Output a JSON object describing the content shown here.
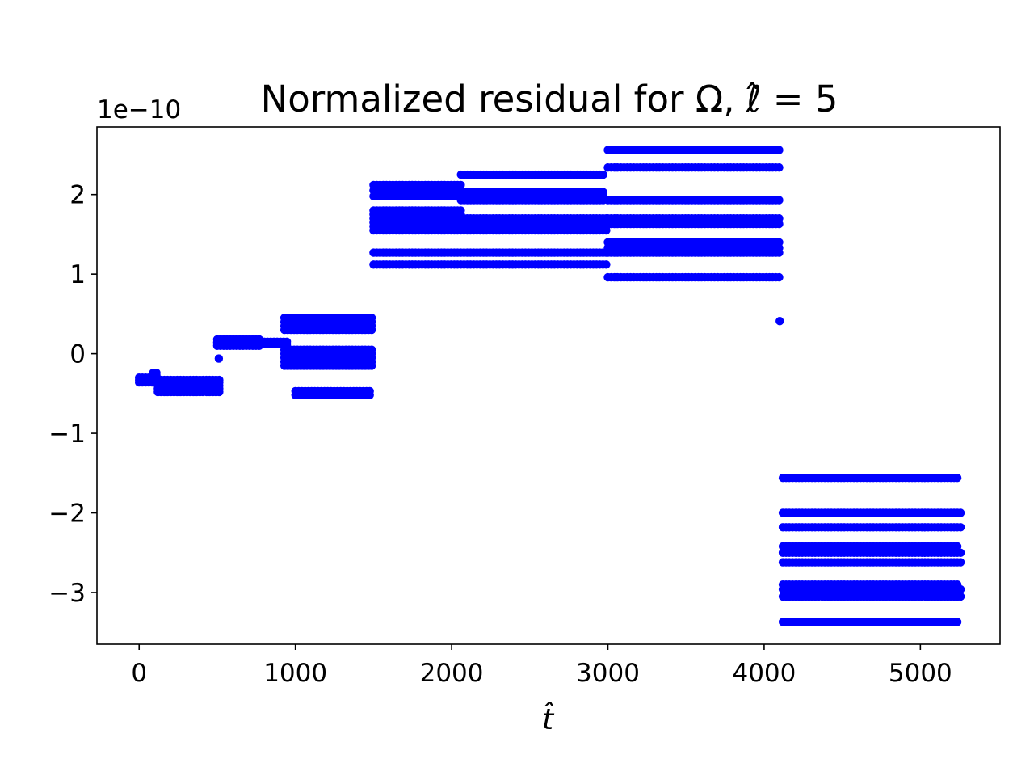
{
  "chart_data": {
    "type": "scatter",
    "title": "Normalized residual for Ω, ℓ̂ = 5",
    "xlabel": "t̂",
    "ylabel": "",
    "y_offset_label": "1e−10",
    "xlim": [
      -270,
      5510
    ],
    "ylim": [
      -3.65,
      2.85
    ],
    "y_scale_exponent": -10,
    "x_ticks": [
      0,
      1000,
      2000,
      3000,
      4000,
      5000
    ],
    "x_tick_labels": [
      "0",
      "1000",
      "2000",
      "3000",
      "4000",
      "5000"
    ],
    "y_ticks": [
      -3,
      -2,
      -1,
      0,
      1,
      2
    ],
    "y_tick_labels": [
      "−3",
      "−2",
      "−1",
      "0",
      "1",
      "2"
    ],
    "grid": false,
    "marker_color": "#0000ff",
    "series": [
      {
        "segments": [
          {
            "x_start": 0,
            "x_end": 120,
            "y_values": [
              -0.3,
              -0.33,
              -0.36
            ]
          },
          {
            "x_start": 90,
            "x_end": 130,
            "y_values": [
              -0.24,
              -0.27
            ]
          },
          {
            "x_start": 120,
            "x_end": 520,
            "y_values": [
              -0.33,
              -0.36,
              -0.4,
              -0.44,
              -0.48
            ]
          },
          {
            "x_start": 510,
            "x_end": 510,
            "y_values": [
              -0.06
            ]
          },
          {
            "x_start": 500,
            "x_end": 780,
            "y_values": [
              0.1,
              0.14,
              0.18
            ]
          },
          {
            "x_start": 780,
            "x_end": 950,
            "y_values": [
              0.12,
              0.15
            ]
          },
          {
            "x_start": 930,
            "x_end": 1490,
            "y_values": [
              0.45,
              0.4,
              0.35,
              0.3,
              0.05,
              0.0,
              -0.05,
              -0.1
            ]
          },
          {
            "x_start": 930,
            "x_end": 1490,
            "y_values": [
              -0.15
            ]
          },
          {
            "x_start": 1000,
            "x_end": 1490,
            "y_values": [
              -0.47,
              -0.52
            ]
          },
          {
            "x_start": 1500,
            "x_end": 2070,
            "y_values": [
              2.12,
              2.05,
              1.98,
              1.8,
              1.75
            ]
          },
          {
            "x_start": 1500,
            "x_end": 2990,
            "y_values": [
              1.7,
              1.65,
              1.6,
              1.55
            ]
          },
          {
            "x_start": 1500,
            "x_end": 2990,
            "y_values": [
              1.27,
              1.12
            ]
          },
          {
            "x_start": 2060,
            "x_end": 2990,
            "y_values": [
              2.25,
              2.03,
              1.98,
              1.93
            ]
          },
          {
            "x_start": 3000,
            "x_end": 4100,
            "y_values": [
              2.56,
              2.34,
              1.93,
              1.7,
              1.63,
              1.4,
              1.33,
              1.27,
              0.96
            ]
          },
          {
            "x_start": 4100,
            "x_end": 4100,
            "y_values": [
              0.41
            ]
          },
          {
            "x_start": 4120,
            "x_end": 5240,
            "y_values": [
              -1.56,
              -2.42,
              -2.9,
              -3.37
            ]
          },
          {
            "x_start": 4120,
            "x_end": 5260,
            "y_values": [
              -2.0,
              -2.18,
              -2.5,
              -2.62,
              -2.96,
              -3.05
            ]
          }
        ]
      }
    ]
  }
}
